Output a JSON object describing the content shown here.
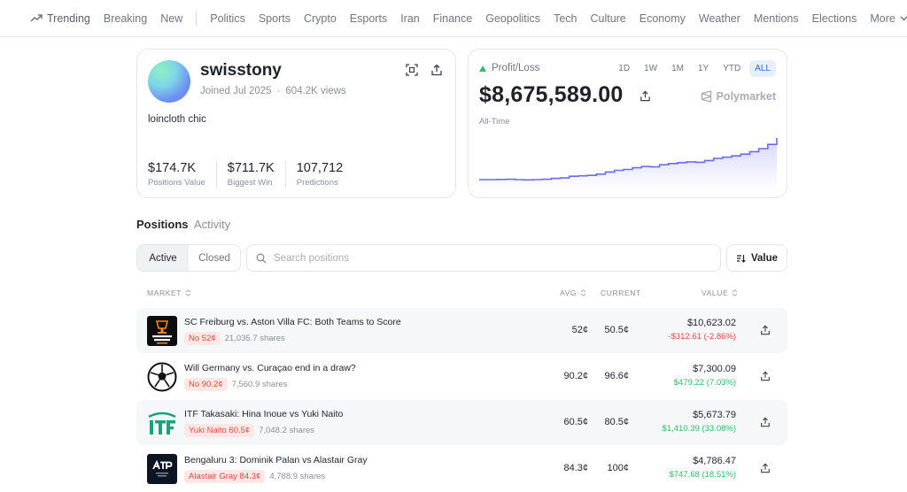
{
  "nav": {
    "trending": "Trending",
    "items": [
      "Breaking",
      "New"
    ],
    "categories": [
      "Politics",
      "Sports",
      "Crypto",
      "Esports",
      "Iran",
      "Finance",
      "Geopolitics",
      "Tech",
      "Culture",
      "Economy",
      "Weather",
      "Mentions",
      "Elections"
    ],
    "more": "More"
  },
  "profile": {
    "username": "swisstony",
    "joined": "Joined Jul 2025",
    "views": "604.2K views",
    "bio": "loincloth chic",
    "stats": [
      {
        "value": "$174.7K",
        "label": "Positions Value"
      },
      {
        "value": "$711.7K",
        "label": "Biggest Win"
      },
      {
        "value": "107,712",
        "label": "Predictions"
      }
    ]
  },
  "pnl": {
    "label": "Profit/Loss",
    "ranges": [
      "1D",
      "1W",
      "1M",
      "1Y",
      "YTD",
      "ALL"
    ],
    "active_range": "ALL",
    "value": "$8,675,589.00",
    "brand": "Polymarket",
    "period": "All-Time",
    "line_color": "#6a6cf0",
    "series": [
      0.02,
      0.02,
      0.025,
      0.03,
      0.02,
      0.015,
      0.02,
      0.03,
      0.05,
      0.06,
      0.1,
      0.11,
      0.12,
      0.15,
      0.2,
      0.24,
      0.26,
      0.3,
      0.33,
      0.32,
      0.37,
      0.4,
      0.42,
      0.44,
      0.43,
      0.47,
      0.52,
      0.55,
      0.58,
      0.62,
      0.68,
      0.75,
      0.85,
      1.0
    ]
  },
  "tabs": {
    "positions": "Positions",
    "activity": "Activity"
  },
  "filter": {
    "active": "Active",
    "closed": "Closed"
  },
  "search": {
    "placeholder": "Search positions"
  },
  "sort": {
    "label": "Value"
  },
  "table": {
    "headers": {
      "market": "MARKET",
      "avg": "AVG",
      "current": "CURRENT",
      "value": "VALUE"
    },
    "rows": [
      {
        "icon": "europa-league-icon",
        "title": "SC Freiburg vs. Aston Villa FC: Both Teams to Score",
        "outcome": "No 52¢",
        "shares": "21,035.7 shares",
        "avg": "52¢",
        "current": "50.5¢",
        "value": "$10,623.02",
        "change": "-$312.61 (-2.86%)",
        "trend": "neg"
      },
      {
        "icon": "soccer-ball-icon",
        "title": "Will Germany vs. Curaçao end in a draw?",
        "outcome": "No 90.2¢",
        "shares": "7,560.9 shares",
        "avg": "90.2¢",
        "current": "96.6¢",
        "value": "$7,300.09",
        "change": "$479.22 (7.03%)",
        "trend": "pos"
      },
      {
        "icon": "itf-logo-icon",
        "title": "ITF Takasaki: Hina Inoue vs Yuki Naito",
        "outcome": "Yuki Naito 60.5¢",
        "shares": "7,048.2 shares",
        "avg": "60.5¢",
        "current": "80.5¢",
        "value": "$5,673.79",
        "change": "$1,410.39 (33.08%)",
        "trend": "pos"
      },
      {
        "icon": "atp-tour-icon",
        "title": "Bengaluru 3: Dominik Palan vs Alastair Gray",
        "outcome": "Alastair Gray 84.3¢",
        "shares": "4,788.9 shares",
        "avg": "84.3¢",
        "current": "100¢",
        "value": "$4,786.47",
        "change": "$747.68 (18.51%)",
        "trend": "pos"
      }
    ]
  }
}
